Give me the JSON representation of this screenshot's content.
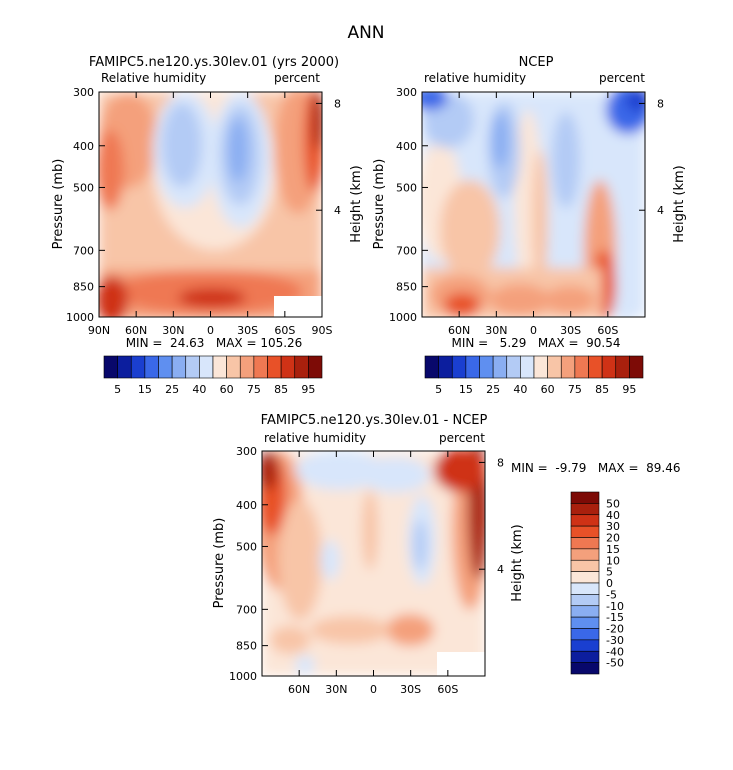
{
  "page_title": "ANN",
  "colors": {
    "rh": [
      "#08086b",
      "#0c1e9e",
      "#1a3fd0",
      "#3a68e8",
      "#5f8ff0",
      "#8aaef2",
      "#b3cbf5",
      "#d8e6fb",
      "#fbe6d8",
      "#f8c5a7",
      "#f4a07c",
      "#ef7852",
      "#e85128",
      "#cf3216",
      "#a9200d",
      "#7d0b06"
    ],
    "diff": [
      "#08086b",
      "#0c1e9e",
      "#1a3fd0",
      "#3a68e8",
      "#5f8ff0",
      "#8aaef2",
      "#b3cbf5",
      "#d8e6fb",
      "#fbe6d8",
      "#f8c5a7",
      "#f4a07c",
      "#ef7852",
      "#e85128",
      "#cf3216",
      "#a9200d",
      "#7d0b06"
    ]
  },
  "chart_data": [
    {
      "type": "heatmap",
      "title": "FAMIPC5.ne120.ys.30lev.01 (yrs 2000)",
      "left_label": "Relative humidity",
      "right_label": "percent",
      "ylabel": "Pressure (mb)",
      "ylabel_right": "Height (km)",
      "x_ticks": [
        "90N",
        "60N",
        "30N",
        "0",
        "30S",
        "60S",
        "90S"
      ],
      "x_tick_values": [
        90,
        60,
        30,
        0,
        -30,
        -60,
        -90
      ],
      "xlim": [
        90,
        -90
      ],
      "y_ticks": [
        "300",
        "400",
        "500",
        "700",
        "850",
        "1000"
      ],
      "y_tick_values": [
        300,
        400,
        500,
        700,
        850,
        1000
      ],
      "ylim": [
        1000,
        300
      ],
      "height_ticks": [
        "8",
        "4"
      ],
      "height_tick_values": [
        8,
        4
      ],
      "stats": "MIN =  24.63   MAX = 105.26",
      "min": 24.63,
      "max": 105.26,
      "colorbar_labels": [
        "5",
        "15",
        "25",
        "40",
        "60",
        "75",
        "85",
        "95"
      ],
      "levels": [
        5,
        10,
        15,
        20,
        25,
        30,
        40,
        50,
        60,
        70,
        75,
        80,
        85,
        90,
        95
      ],
      "colorbar_orientation": "horizontal"
    },
    {
      "type": "heatmap",
      "title": "NCEP",
      "left_label": "relative humidity",
      "right_label": "percent",
      "ylabel": "Pressure (mb)",
      "ylabel_right": "Height (km)",
      "x_ticks": [
        "60N",
        "30N",
        "0",
        "30S",
        "60S"
      ],
      "x_tick_values": [
        60,
        30,
        0,
        -30,
        -60
      ],
      "xlim": [
        90,
        -90
      ],
      "y_ticks": [
        "300",
        "400",
        "500",
        "700",
        "850",
        "1000"
      ],
      "y_tick_values": [
        300,
        400,
        500,
        700,
        850,
        1000
      ],
      "ylim": [
        1000,
        300
      ],
      "height_ticks": [
        "8",
        "4"
      ],
      "height_tick_values": [
        8,
        4
      ],
      "stats": "MIN =   5.29   MAX =  90.54",
      "min": 5.29,
      "max": 90.54,
      "colorbar_labels": [
        "5",
        "15",
        "25",
        "40",
        "60",
        "75",
        "85",
        "95"
      ],
      "levels": [
        5,
        10,
        15,
        20,
        25,
        30,
        40,
        50,
        60,
        70,
        75,
        80,
        85,
        90,
        95
      ],
      "colorbar_orientation": "horizontal"
    },
    {
      "type": "heatmap",
      "title": "FAMIPC5.ne120.ys.30lev.01 - NCEP",
      "left_label": "relative humidity",
      "right_label": "percent",
      "ylabel": "Pressure (mb)",
      "ylabel_right": "Height (km)",
      "x_ticks": [
        "60N",
        "30N",
        "0",
        "30S",
        "60S"
      ],
      "x_tick_values": [
        60,
        30,
        0,
        -30,
        -60
      ],
      "xlim": [
        90,
        -90
      ],
      "y_ticks": [
        "300",
        "400",
        "500",
        "700",
        "850",
        "1000"
      ],
      "y_tick_values": [
        300,
        400,
        500,
        700,
        850,
        1000
      ],
      "ylim": [
        1000,
        300
      ],
      "height_ticks": [
        "8",
        "4"
      ],
      "height_tick_values": [
        8,
        4
      ],
      "stats": "MIN =  -9.79   MAX =  89.46",
      "min": -9.79,
      "max": 89.46,
      "colorbar_labels": [
        "50",
        "40",
        "30",
        "20",
        "15",
        "10",
        "5",
        "0",
        "-5",
        "-10",
        "-15",
        "-20",
        "-30",
        "-40",
        "-50"
      ],
      "levels": [
        -50,
        -40,
        -30,
        -20,
        -15,
        -10,
        -5,
        0,
        5,
        10,
        15,
        20,
        30,
        40,
        50
      ],
      "colorbar_orientation": "vertical"
    }
  ]
}
